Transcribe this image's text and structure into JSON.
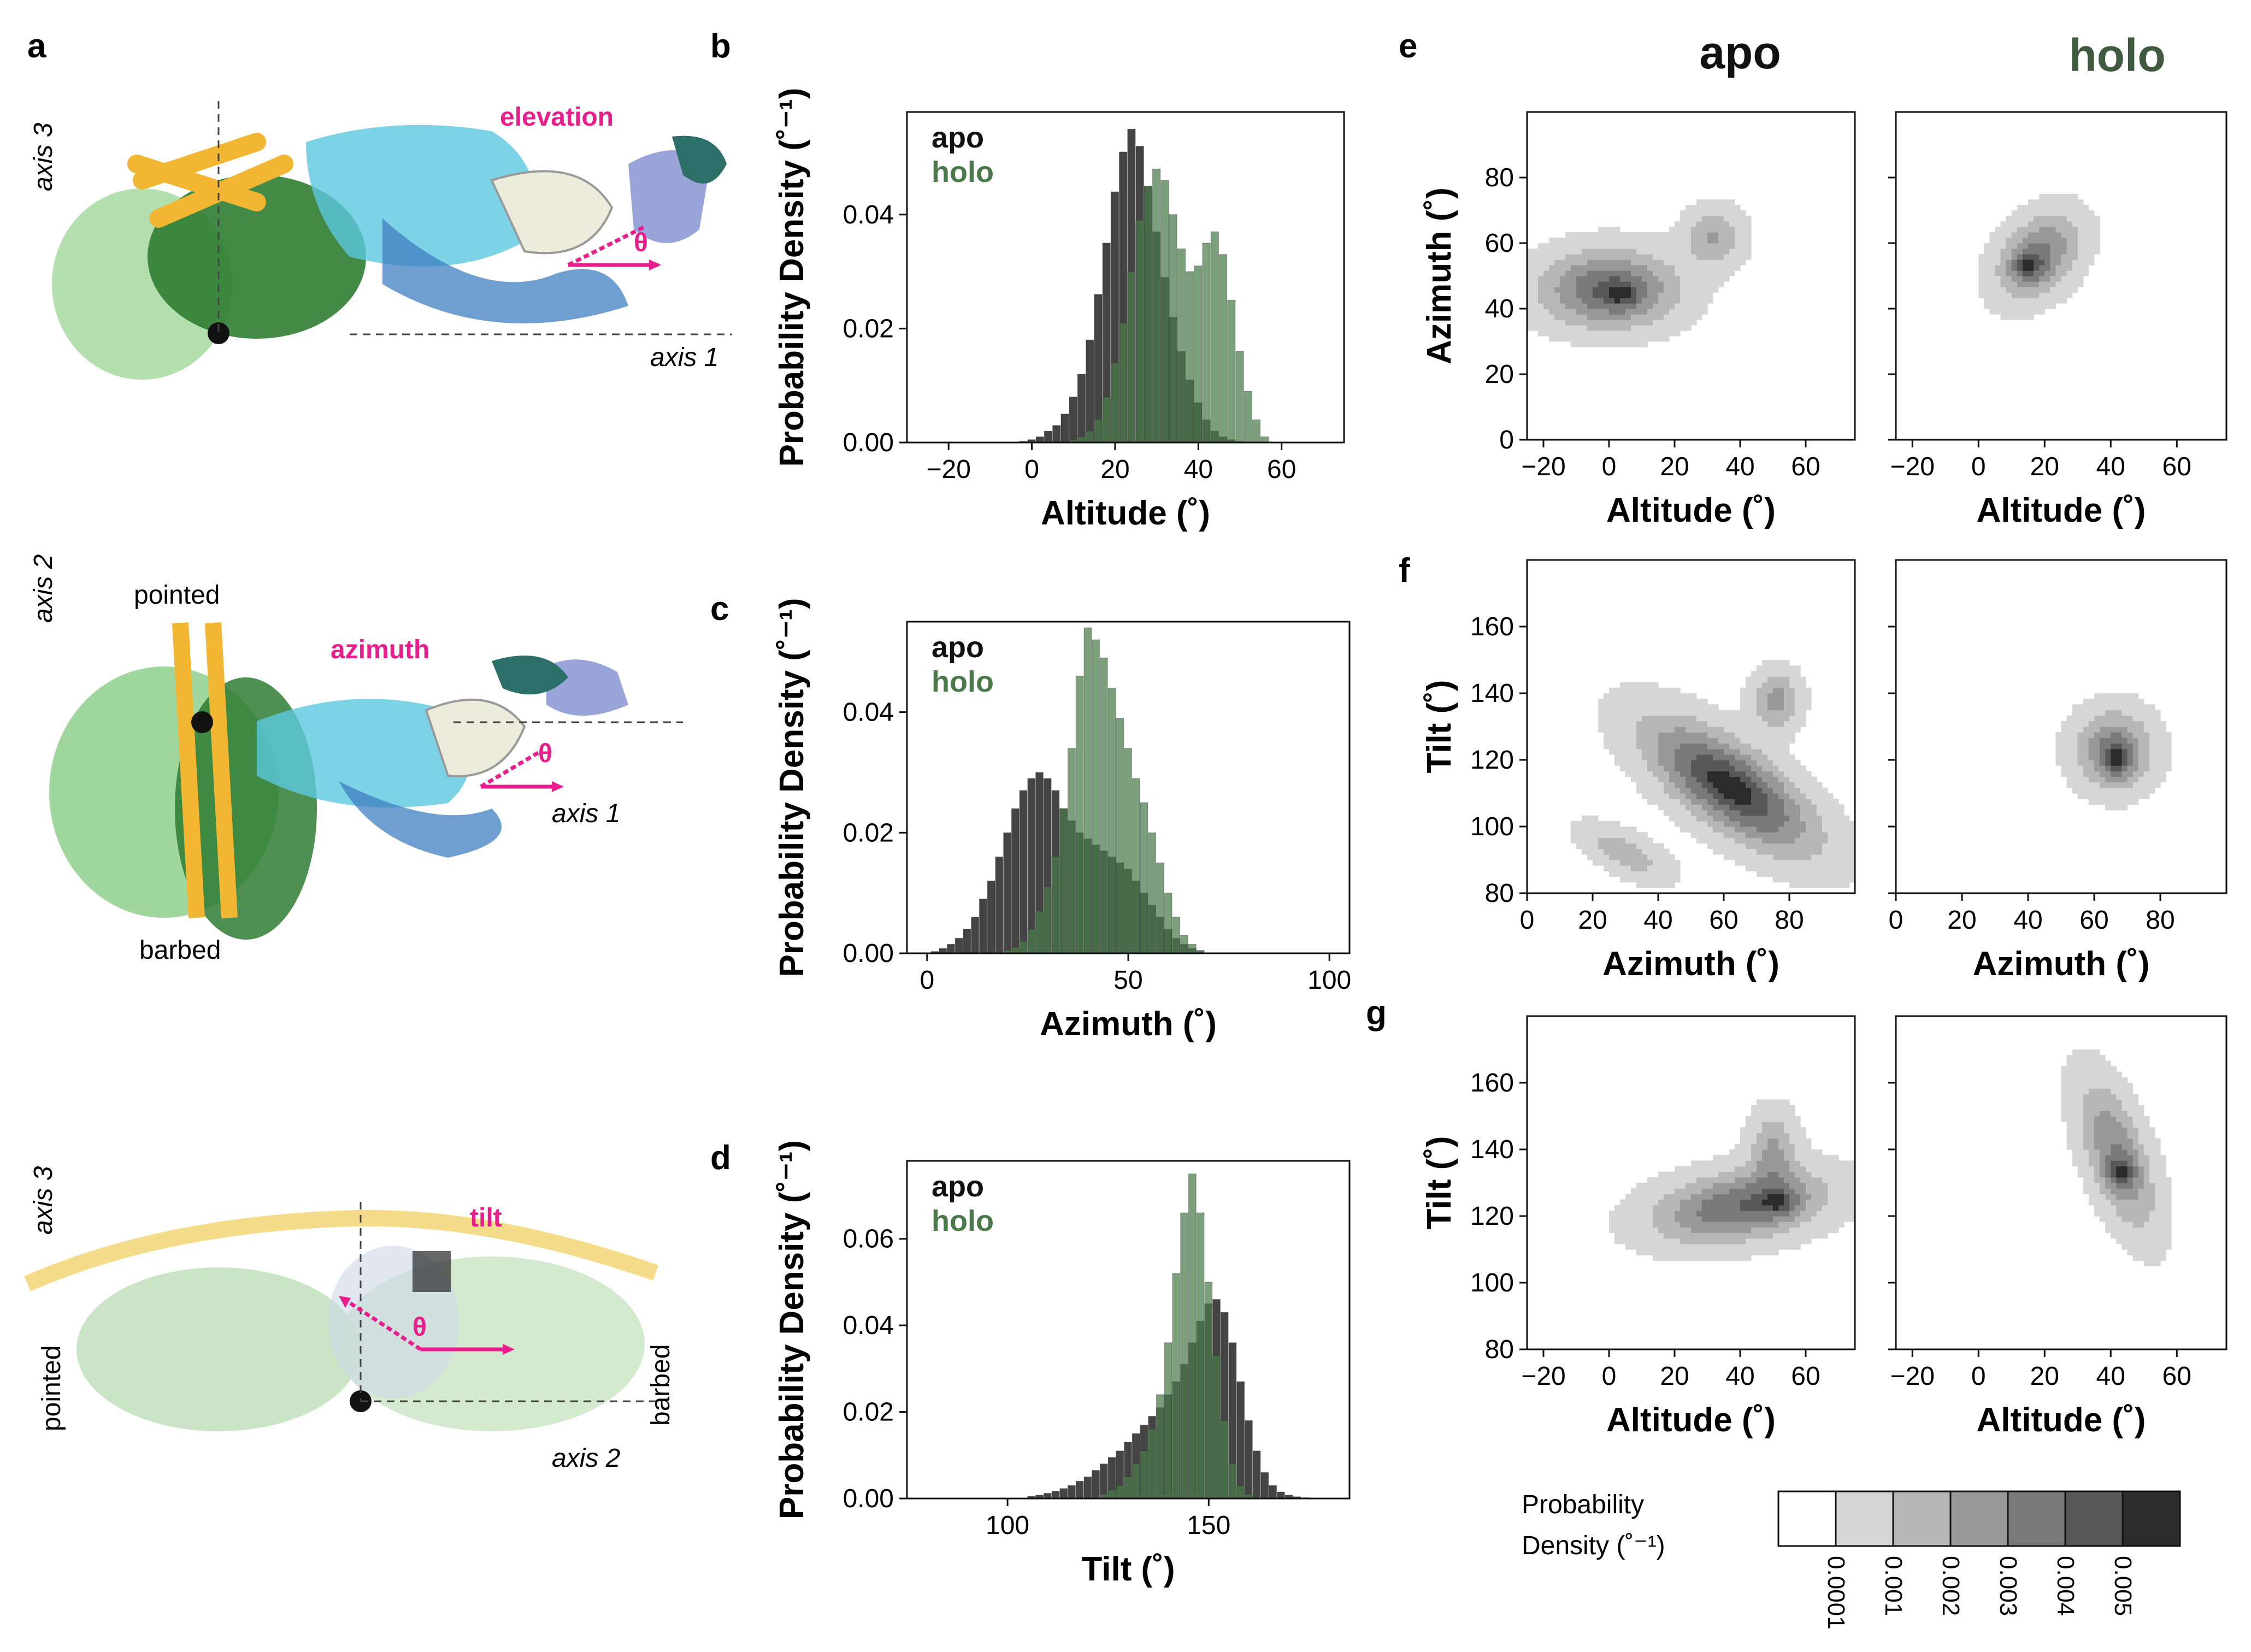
{
  "panel_labels": {
    "a": "a",
    "b": "b",
    "c": "c",
    "d": "d",
    "e": "e",
    "f": "f",
    "g": "g"
  },
  "colors": {
    "apo": "#3a3a3a",
    "holo": "#4a7a4a",
    "holo_title": "#3f5a3f",
    "accent": "#e91e8c",
    "actin_light": "#8ed08e",
    "actin_dark": "#2e7d32",
    "tropo": "#f2b632",
    "motor": "#4aa3c8"
  },
  "panel_a": {
    "views": [
      {
        "label_axis_v": "axis 3",
        "label_axis_h": "axis 1",
        "angle_label": "elevation",
        "theta": "θ"
      },
      {
        "label_axis_v": "axis 2",
        "label_axis_h": "axis 1",
        "angle_label": "azimuth",
        "theta": "θ",
        "top_end": "pointed",
        "bottom_end": "barbed"
      },
      {
        "label_axis_v": "axis 3",
        "label_axis_h": "axis 2",
        "angle_label": "tilt",
        "theta": "θ",
        "left_end": "pointed",
        "right_end": "barbed"
      }
    ]
  },
  "column_titles": {
    "apo": "apo",
    "holo": "holo"
  },
  "chart_data": [
    {
      "id": "b",
      "type": "bar",
      "title": "",
      "xlabel": "Altitude (˚)",
      "ylabel": "Probability Density (˚⁻¹)",
      "xlim": [
        -30,
        75
      ],
      "ylim": [
        0,
        0.058
      ],
      "xticks": [
        -20,
        0,
        20,
        40,
        60
      ],
      "xtick_labels": [
        "−20",
        "0",
        "20",
        "40",
        "60"
      ],
      "yticks": [
        0,
        0.02,
        0.04
      ],
      "ytick_labels": [
        "0.00",
        "0.02",
        "0.04"
      ],
      "legend": [
        "apo",
        "holo"
      ],
      "bin_width": 2,
      "series": [
        {
          "name": "apo",
          "x": [
            -2,
            0,
            2,
            4,
            6,
            8,
            10,
            12,
            14,
            16,
            18,
            20,
            22,
            24,
            26,
            28,
            30,
            32,
            34,
            36,
            38,
            40,
            42,
            44,
            46,
            48,
            50
          ],
          "values": [
            0.0002,
            0.0005,
            0.001,
            0.002,
            0.003,
            0.005,
            0.008,
            0.012,
            0.018,
            0.026,
            0.035,
            0.044,
            0.051,
            0.055,
            0.052,
            0.045,
            0.037,
            0.029,
            0.022,
            0.016,
            0.011,
            0.007,
            0.004,
            0.002,
            0.001,
            0.0005,
            0.0002
          ]
        },
        {
          "name": "holo",
          "x": [
            10,
            12,
            14,
            16,
            18,
            20,
            22,
            24,
            26,
            28,
            30,
            32,
            34,
            36,
            38,
            40,
            42,
            44,
            46,
            48,
            50,
            52,
            54,
            56
          ],
          "values": [
            0.0005,
            0.001,
            0.002,
            0.004,
            0.008,
            0.014,
            0.021,
            0.03,
            0.039,
            0.045,
            0.048,
            0.046,
            0.04,
            0.034,
            0.03,
            0.031,
            0.035,
            0.037,
            0.033,
            0.025,
            0.016,
            0.009,
            0.004,
            0.001
          ]
        }
      ]
    },
    {
      "id": "c",
      "type": "bar",
      "title": "",
      "xlabel": "Azimuth (˚)",
      "ylabel": "Probability Density (˚⁻¹)",
      "xlim": [
        -5,
        105
      ],
      "ylim": [
        0,
        0.055
      ],
      "xticks": [
        0,
        50,
        100
      ],
      "xtick_labels": [
        "0",
        "50",
        "100"
      ],
      "yticks": [
        0,
        0.02,
        0.04
      ],
      "ytick_labels": [
        "0.00",
        "0.02",
        "0.04"
      ],
      "legend": [
        "apo",
        "holo"
      ],
      "bin_width": 2,
      "series": [
        {
          "name": "apo",
          "x": [
            2,
            4,
            6,
            8,
            10,
            12,
            14,
            16,
            18,
            20,
            22,
            24,
            26,
            28,
            30,
            32,
            34,
            36,
            38,
            40,
            42,
            44,
            46,
            48,
            50,
            52,
            54,
            56,
            58,
            60,
            62,
            64,
            66,
            68
          ],
          "values": [
            0.0003,
            0.0008,
            0.0015,
            0.0025,
            0.004,
            0.006,
            0.009,
            0.012,
            0.016,
            0.02,
            0.024,
            0.027,
            0.029,
            0.03,
            0.029,
            0.027,
            0.024,
            0.022,
            0.02,
            0.019,
            0.018,
            0.017,
            0.016,
            0.015,
            0.014,
            0.012,
            0.01,
            0.008,
            0.006,
            0.004,
            0.0025,
            0.0015,
            0.0008,
            0.0003
          ]
        },
        {
          "name": "holo",
          "x": [
            20,
            22,
            24,
            26,
            28,
            30,
            32,
            34,
            36,
            38,
            40,
            42,
            44,
            46,
            48,
            50,
            52,
            54,
            56,
            58,
            60,
            62,
            64,
            66,
            68
          ],
          "values": [
            0.0005,
            0.001,
            0.002,
            0.004,
            0.007,
            0.011,
            0.016,
            0.024,
            0.034,
            0.046,
            0.054,
            0.052,
            0.049,
            0.044,
            0.039,
            0.034,
            0.029,
            0.025,
            0.02,
            0.015,
            0.01,
            0.006,
            0.003,
            0.0015,
            0.0005
          ]
        }
      ]
    },
    {
      "id": "d",
      "type": "bar",
      "title": "",
      "xlabel": "Tilt (˚)",
      "ylabel": "Probability Density (˚⁻¹)",
      "xlim": [
        75,
        185
      ],
      "ylim": [
        0,
        0.078
      ],
      "xticks": [
        100,
        150
      ],
      "xtick_labels": [
        "100",
        "150"
      ],
      "yticks": [
        0,
        0.02,
        0.04,
        0.06
      ],
      "ytick_labels": [
        "0.00",
        "0.02",
        "0.04",
        "0.06"
      ],
      "legend": [
        "apo",
        "holo"
      ],
      "bin_width": 2,
      "series": [
        {
          "name": "apo",
          "x": [
            106,
            108,
            110,
            112,
            114,
            116,
            118,
            120,
            122,
            124,
            126,
            128,
            130,
            132,
            134,
            136,
            138,
            140,
            142,
            144,
            146,
            148,
            150,
            152,
            154,
            156,
            158,
            160,
            162,
            164,
            166,
            168,
            170,
            172,
            174
          ],
          "values": [
            0.0005,
            0.0008,
            0.0012,
            0.0017,
            0.0023,
            0.003,
            0.004,
            0.005,
            0.0065,
            0.008,
            0.0095,
            0.011,
            0.013,
            0.015,
            0.017,
            0.019,
            0.021,
            0.024,
            0.027,
            0.031,
            0.036,
            0.041,
            0.045,
            0.046,
            0.043,
            0.036,
            0.027,
            0.018,
            0.011,
            0.006,
            0.003,
            0.0015,
            0.0008,
            0.0004,
            0.0002
          ]
        },
        {
          "name": "holo",
          "x": [
            124,
            126,
            128,
            130,
            132,
            134,
            136,
            138,
            140,
            142,
            144,
            146,
            148,
            150,
            152,
            154,
            156,
            158,
            160,
            162
          ],
          "values": [
            0.001,
            0.002,
            0.003,
            0.005,
            0.008,
            0.011,
            0.016,
            0.024,
            0.036,
            0.052,
            0.066,
            0.075,
            0.066,
            0.05,
            0.033,
            0.018,
            0.008,
            0.003,
            0.001,
            0.0004
          ]
        }
      ]
    },
    {
      "id": "e",
      "type": "heatmap",
      "subtype": "contour",
      "xlabel": "Altitude (˚)",
      "ylabel": "Azimuth (˚)",
      "xlim": [
        -25,
        75
      ],
      "ylim": [
        0,
        100
      ],
      "xticks": [
        -20,
        0,
        20,
        40,
        60
      ],
      "xtick_labels": [
        "−20",
        "0",
        "20",
        "40",
        "60"
      ],
      "yticks": [
        0,
        20,
        40,
        60,
        80
      ],
      "ytick_labels": [
        "0",
        "20",
        "40",
        "60",
        "80"
      ],
      "panels": [
        {
          "name": "apo",
          "blobs": [
            {
              "cx": 0,
              "cy": 46,
              "sx": 14,
              "sy": 8,
              "w": 1.0
            },
            {
              "cx": 32,
              "cy": 62,
              "sx": 6,
              "sy": 6,
              "w": 0.55
            },
            {
              "cx": 4,
              "cy": 44,
              "sx": 4,
              "sy": 3,
              "w": 0.3
            }
          ]
        },
        {
          "name": "holo",
          "blobs": [
            {
              "cx": 18,
              "cy": 56,
              "sx": 7,
              "sy": 10,
              "rot": -0.75,
              "w": 1.0
            },
            {
              "cx": 15,
              "cy": 53,
              "sx": 3,
              "sy": 3,
              "w": 0.6
            }
          ]
        }
      ]
    },
    {
      "id": "f",
      "type": "heatmap",
      "subtype": "contour",
      "xlabel": "Azimuth (˚)",
      "ylabel": "Tilt (˚)",
      "xlim": [
        0,
        100
      ],
      "ylim": [
        80,
        180
      ],
      "xticks": [
        0,
        20,
        40,
        60,
        80
      ],
      "xtick_labels": [
        "0",
        "20",
        "40",
        "60",
        "80"
      ],
      "yticks": [
        80,
        100,
        120,
        140,
        160
      ],
      "ytick_labels": [
        "80",
        "100",
        "120",
        "140",
        "160"
      ],
      "panels": [
        {
          "name": "apo",
          "blobs": [
            {
              "cx": 62,
              "cy": 112,
              "sx": 20,
              "sy": 8,
              "rot": -0.6,
              "w": 1.0
            },
            {
              "cx": 76,
              "cy": 138,
              "sx": 5,
              "sy": 6,
              "w": 0.5
            },
            {
              "cx": 30,
              "cy": 92,
              "sx": 10,
              "sy": 4,
              "rot": -0.45,
              "w": 0.35
            }
          ]
        },
        {
          "name": "holo",
          "blobs": [
            {
              "cx": 66,
              "cy": 123,
              "sx": 8,
              "sy": 8,
              "w": 1.0
            },
            {
              "cx": 67,
              "cy": 120,
              "sx": 3,
              "sy": 4,
              "w": 0.6
            }
          ]
        }
      ]
    },
    {
      "id": "g",
      "type": "heatmap",
      "subtype": "contour",
      "xlabel": "Altitude (˚)",
      "ylabel": "Tilt (˚)",
      "xlim": [
        -25,
        75
      ],
      "ylim": [
        80,
        180
      ],
      "xticks": [
        -20,
        0,
        20,
        40,
        60
      ],
      "xtick_labels": [
        "−20",
        "0",
        "20",
        "40",
        "60"
      ],
      "yticks": [
        80,
        100,
        120,
        140,
        160
      ],
      "ytick_labels": [
        "80",
        "100",
        "120",
        "140",
        "160"
      ],
      "panels": [
        {
          "name": "apo",
          "blobs": [
            {
              "cx": 40,
              "cy": 123,
              "sx": 18,
              "sy": 7,
              "rot": 0.15,
              "w": 1.0
            },
            {
              "cx": 50,
              "cy": 140,
              "sx": 5,
              "sy": 8,
              "w": 0.55
            },
            {
              "cx": 52,
              "cy": 124,
              "sx": 4,
              "sy": 3,
              "w": 0.4
            }
          ]
        },
        {
          "name": "holo",
          "blobs": [
            {
              "cx": 42,
              "cy": 138,
              "sx": 6,
              "sy": 16,
              "rot": 0.35,
              "w": 1.0
            },
            {
              "cx": 43,
              "cy": 133,
              "sx": 3,
              "sy": 3,
              "w": 0.7
            }
          ]
        }
      ]
    }
  ],
  "colorbar": {
    "title_line1": "Probability",
    "title_line2": "Density (˚⁻¹)",
    "levels": [
      "0.0001",
      "0.001",
      "0.002",
      "0.003",
      "0.004",
      "0.005"
    ],
    "fills": [
      "#ffffff",
      "#d6d6d6",
      "#b7b7b7",
      "#999999",
      "#7a7a7a",
      "#585858",
      "#2b2b2b"
    ]
  }
}
